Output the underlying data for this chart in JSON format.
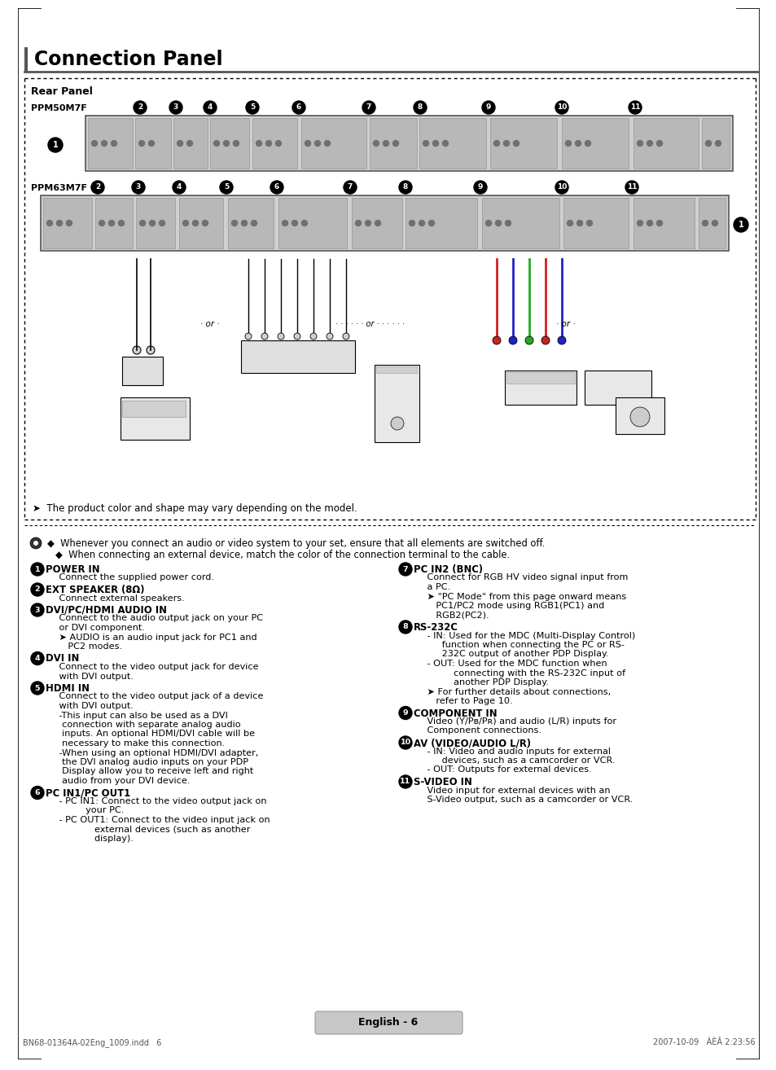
{
  "bg_color": "#ffffff",
  "header": "Connection Panel",
  "rear_panel_label": "Rear Panel",
  "ppm50": "PPM50M7F",
  "ppm63": "PPM63M7F",
  "note_line1": "Whenever you connect an audio or video system to your set, ensure that all elements are switched off.",
  "note_line2": "When connecting an external device, match the color of the connection terminal to the cable.",
  "product_note": "➤  The product color and shape may vary depending on the model.",
  "items_left": [
    {
      "num": "1",
      "title": "POWER IN",
      "lines": [
        "    Connect the supplied power cord."
      ]
    },
    {
      "num": "2",
      "title": "EXT SPEAKER (8Ω)",
      "lines": [
        "    Connect external speakers."
      ]
    },
    {
      "num": "3",
      "title": "DVI/PC/HDMI AUDIO IN",
      "lines": [
        "    Connect to the audio output jack on your PC",
        "    or DVI component.",
        "    ➤ AUDIO is an audio input jack for PC1 and",
        "       PC2 modes."
      ]
    },
    {
      "num": "4",
      "title": "DVI IN",
      "lines": [
        "    Connect to the video output jack for device",
        "    with DVI output."
      ]
    },
    {
      "num": "5",
      "title": "HDMI IN",
      "lines": [
        "    Connect to the video output jack of a device",
        "    with DVI output.",
        "    -This input can also be used as a DVI",
        "     connection with separate analog audio",
        "     inputs. An optional HDMI/DVI cable will be",
        "     necessary to make this connection.",
        "    -When using an optional HDMI/DVI adapter,",
        "     the DVI analog audio inputs on your PDP",
        "     Display allow you to receive left and right",
        "     audio from your DVI device."
      ]
    },
    {
      "num": "6",
      "title": "PC IN1/PC OUT1",
      "lines": [
        "    - •PC IN1•: Connect to the video output jack on",
        "             your PC.",
        "    - •PC OUT1•: Connect to the video input jack on",
        "                external devices (such as another",
        "                display)."
      ]
    }
  ],
  "items_right": [
    {
      "num": "7",
      "title": "PC IN2 (BNC)",
      "lines": [
        "    Connect for RGB HV video signal input from",
        "    a PC.",
        "    ➤ \"PC Mode\" from this page onward means",
        "       PC1/PC2 mode using RGB1(PC1) and",
        "       RGB2(PC2)."
      ]
    },
    {
      "num": "8",
      "title": "RS-232C",
      "lines": [
        "    - •IN•: Used for the MDC (Multi-Display Control)",
        "         function when connecting the PC or RS-",
        "         232C output of another PDP Display.",
        "    - •OUT•: Used for the MDC function when",
        "             connecting with the RS-232C input of",
        "             another PDP Display.",
        "    ➤ For further details about connections,",
        "       refer to Page 10."
      ]
    },
    {
      "num": "9",
      "title": "COMPONENT IN",
      "lines": [
        "    Video (Y/Pʙ/Pʀ) and audio (L/R) inputs for",
        "    Component connections."
      ]
    },
    {
      "num": "10",
      "title": "AV (VIDEO/AUDIO L/R)",
      "lines": [
        "    - •IN•: Video and audio inputs for external",
        "         devices, such as a camcorder or VCR.",
        "    - •OUT•: Outputs for external devices."
      ]
    },
    {
      "num": "11",
      "title": "S-VIDEO IN",
      "lines": [
        "    Video input for external devices with an",
        "    S-Video output, such as a camcorder or VCR."
      ]
    }
  ],
  "footer_text": "English - 6",
  "bottom_text_left": "BN68-01364A-02Eng_1009.indd   6",
  "bottom_text_right": "2007-10-09   ÀÈÂ 2:23:56"
}
